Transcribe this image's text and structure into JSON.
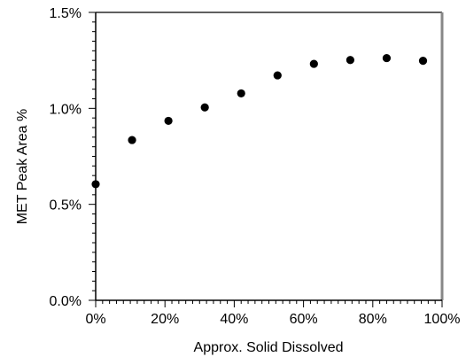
{
  "chart_data": {
    "type": "scatter",
    "title": "",
    "xlabel": "Approx. Solid Dissolved",
    "ylabel": "MET Peak Area %",
    "xlim": [
      0,
      100
    ],
    "ylim": [
      0,
      1.5
    ],
    "xticks": [
      0,
      20,
      40,
      60,
      80,
      100
    ],
    "xtick_labels": [
      "0%",
      "20%",
      "40%",
      "60%",
      "80%",
      "100%"
    ],
    "yticks": [
      0,
      0.5,
      1.0,
      1.5
    ],
    "ytick_labels": [
      "0.0%",
      "0.5%",
      "1.0%",
      "1.5%"
    ],
    "x_minor_step": 2,
    "y_minor_step": 0.05,
    "grid": false,
    "legend": "none",
    "marker_color": "#000000",
    "series": [
      {
        "x": [
          0,
          10.5,
          21,
          31.5,
          42,
          52.5,
          63,
          73.5,
          84,
          94.5
        ],
        "y": [
          0.605,
          0.835,
          0.935,
          1.005,
          1.078,
          1.172,
          1.232,
          1.252,
          1.262,
          1.248
        ]
      }
    ]
  }
}
